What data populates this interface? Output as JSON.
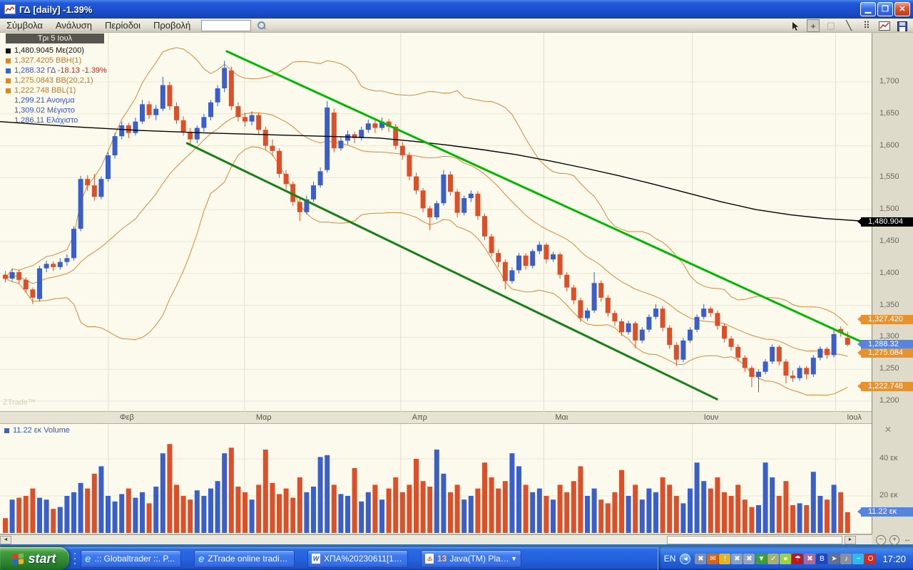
{
  "window": {
    "title": "ΓΔ [daily] -1.39%"
  },
  "menu": {
    "items": [
      "Σύμβολα",
      "Ανάλυση",
      "Περίοδοι",
      "Προβολή"
    ],
    "search_value": ""
  },
  "toolbar": {
    "tools": [
      {
        "name": "pointer-tool",
        "glyph": "svg-pointer",
        "active": false
      },
      {
        "name": "crosshair-tool",
        "glyph": "+",
        "active": true
      },
      {
        "name": "rectangle-tool",
        "glyph": "▢",
        "active": false,
        "disabled": true
      },
      {
        "name": "trendline-tool",
        "glyph": "╲",
        "active": false
      },
      {
        "name": "grid-tool",
        "glyph": "⠿",
        "active": false
      },
      {
        "name": "chart-tool",
        "glyph": "svg-chart",
        "active": false
      },
      {
        "name": "save-tool",
        "glyph": "svg-save",
        "active": false
      }
    ]
  },
  "price_pane": {
    "date_tooltip": "Τρι 5 Ιουλ",
    "watermark": "ZTrade™",
    "legend": [
      {
        "swatch": "#111111",
        "parts": [
          {
            "text": "1,480.9045 Με(200)",
            "color": "#111111"
          }
        ]
      },
      {
        "swatch": "#d9862c",
        "parts": [
          {
            "text": "1,327.4205 BBH(1)",
            "color": "#c8790f"
          }
        ]
      },
      {
        "swatch": "#3b63c4",
        "parts": [
          {
            "text": "1,288.32 ΓΔ ",
            "color": "#3355cc"
          },
          {
            "text": "-18.13 -1.39%",
            "color": "#cc2211"
          }
        ]
      },
      {
        "swatch": "#d9862c",
        "parts": [
          {
            "text": "1,275.0843 BB(20,2,1)",
            "color": "#c8790f"
          }
        ]
      },
      {
        "swatch": "#d9862c",
        "parts": [
          {
            "text": "1,222.748 BBL(1)",
            "color": "#c8790f"
          }
        ]
      },
      {
        "parts": [
          {
            "text": "1,299.21 Ανοιγμα",
            "color": "#3355cc"
          }
        ]
      },
      {
        "parts": [
          {
            "text": "1,309.02 Μέγιστο",
            "color": "#3355cc"
          }
        ]
      },
      {
        "parts": [
          {
            "text": "1,286.11 Ελάχιστο",
            "color": "#3355cc"
          }
        ]
      }
    ]
  },
  "volume_pane": {
    "legend": "11.22 εκ Volume",
    "swatch": "#3b63c4"
  },
  "chart_data": {
    "type": "candlestick+volume",
    "symbol": "ΓΔ",
    "interval": "daily",
    "change_pct": "-1.39%",
    "up_color": "#3a5fc8",
    "down_color": "#dd4f28",
    "band_color": "#d8893a",
    "ma_color": "#000000",
    "price_ticks": [
      {
        "label": "1,700",
        "price": 1700
      },
      {
        "label": "1,650",
        "price": 1650
      },
      {
        "label": "1,600",
        "price": 1600
      },
      {
        "label": "1,550",
        "price": 1550
      },
      {
        "label": "1,500",
        "price": 1500
      },
      {
        "label": "1,450",
        "price": 1450
      },
      {
        "label": "1,400",
        "price": 1400
      },
      {
        "label": "1,350",
        "price": 1350
      },
      {
        "label": "1,300",
        "price": 1300
      },
      {
        "label": "1,250",
        "price": 1250
      },
      {
        "label": "1,200",
        "price": 1200
      }
    ],
    "months": [
      {
        "label": "Φεβ",
        "i": 15.4
      },
      {
        "label": "Μαρ",
        "i": 35.3
      },
      {
        "label": "Απρ",
        "i": 58.1
      },
      {
        "label": "Μαι",
        "i": 79.0
      },
      {
        "label": "Ιουν",
        "i": 100.7
      },
      {
        "label": "Ιουλ",
        "i": 121.6
      }
    ],
    "tags": [
      {
        "name": "ma200-tag",
        "label": "1,480.904",
        "price": 1480.9,
        "bg": "#000000"
      },
      {
        "name": "bbh-tag",
        "label": "1,327.420",
        "price": 1327.42,
        "bg": "#e8922e"
      },
      {
        "name": "last-price-tag",
        "label": "1,288.32",
        "price": 1288.32,
        "bg": "#5585dd"
      },
      {
        "name": "bbmid-tag",
        "label": "1,275.084",
        "price": 1275.08,
        "bg": "#e8922e"
      },
      {
        "name": "bbl-tag",
        "label": "1,222.748",
        "price": 1222.75,
        "bg": "#e8922e"
      }
    ],
    "volume_ticks": [
      {
        "label": "40 εκ",
        "value": 40
      },
      {
        "label": "20 εκ",
        "value": 20
      }
    ],
    "volume_tag": {
      "label": "11.22 εκ",
      "value": 11.22,
      "bg": "#5585dd"
    },
    "last_day": {
      "open": 1299.21,
      "high": 1309.02,
      "low": 1286.11,
      "close": 1288.32,
      "volume_ek": 11.22
    },
    "trendlines": [
      {
        "name": "upper-channel-line",
        "i1": 32.7,
        "p1": 1748,
        "i2": 126.8,
        "p2": 1286,
        "color": "#00b800",
        "width": 3
      },
      {
        "name": "lower-channel-line",
        "i1": 26.9,
        "p1": 1604,
        "i2": 104.3,
        "p2": 1203,
        "color": "#188018",
        "width": 3
      }
    ],
    "ma200_anchors": [
      [
        -0.5,
        1638
      ],
      [
        10,
        1630
      ],
      [
        20,
        1624
      ],
      [
        30,
        1620
      ],
      [
        40,
        1617
      ],
      [
        50,
        1614
      ],
      [
        55,
        1612
      ],
      [
        60,
        1607
      ],
      [
        65,
        1601
      ],
      [
        70,
        1594
      ],
      [
        75,
        1586
      ],
      [
        80,
        1576
      ],
      [
        85,
        1565
      ],
      [
        90,
        1553
      ],
      [
        95,
        1540
      ],
      [
        100,
        1526
      ],
      [
        105,
        1512
      ],
      [
        110,
        1500
      ],
      [
        115,
        1492
      ],
      [
        120,
        1486
      ],
      [
        127,
        1481
      ]
    ],
    "bollinger": {
      "period": 20,
      "mult": 2
    },
    "candles": [
      [
        1398,
        1404,
        1386,
        1392
      ],
      [
        1392,
        1408,
        1388,
        1402
      ],
      [
        1402,
        1406,
        1384,
        1390
      ],
      [
        1390,
        1394,
        1370,
        1375
      ],
      [
        1375,
        1378,
        1352,
        1362
      ],
      [
        1360,
        1412,
        1356,
        1408
      ],
      [
        1408,
        1420,
        1402,
        1415
      ],
      [
        1415,
        1419,
        1404,
        1410
      ],
      [
        1410,
        1424,
        1406,
        1418
      ],
      [
        1418,
        1430,
        1412,
        1424
      ],
      [
        1424,
        1474,
        1420,
        1470
      ],
      [
        1470,
        1553,
        1466,
        1548
      ],
      [
        1548,
        1554,
        1530,
        1538
      ],
      [
        1538,
        1556,
        1514,
        1520
      ],
      [
        1520,
        1552,
        1516,
        1548
      ],
      [
        1548,
        1590,
        1544,
        1585
      ],
      [
        1585,
        1620,
        1580,
        1615
      ],
      [
        1615,
        1638,
        1610,
        1632
      ],
      [
        1632,
        1636,
        1612,
        1620
      ],
      [
        1620,
        1644,
        1616,
        1638
      ],
      [
        1638,
        1672,
        1634,
        1665
      ],
      [
        1665,
        1670,
        1642,
        1648
      ],
      [
        1648,
        1664,
        1640,
        1658
      ],
      [
        1658,
        1708,
        1654,
        1695
      ],
      [
        1695,
        1700,
        1656,
        1662
      ],
      [
        1662,
        1668,
        1634,
        1640
      ],
      [
        1640,
        1646,
        1616,
        1622
      ],
      [
        1622,
        1628,
        1602,
        1610
      ],
      [
        1610,
        1632,
        1604,
        1628
      ],
      [
        1628,
        1650,
        1622,
        1645
      ],
      [
        1645,
        1672,
        1640,
        1668
      ],
      [
        1668,
        1695,
        1662,
        1690
      ],
      [
        1690,
        1733,
        1684,
        1722
      ],
      [
        1718,
        1724,
        1656,
        1662
      ],
      [
        1662,
        1668,
        1638,
        1645
      ],
      [
        1645,
        1652,
        1630,
        1638
      ],
      [
        1638,
        1654,
        1632,
        1648
      ],
      [
        1648,
        1652,
        1618,
        1625
      ],
      [
        1625,
        1630,
        1594,
        1600
      ],
      [
        1600,
        1610,
        1584,
        1592
      ],
      [
        1592,
        1596,
        1550,
        1556
      ],
      [
        1556,
        1562,
        1532,
        1540
      ],
      [
        1540,
        1544,
        1506,
        1512
      ],
      [
        1512,
        1518,
        1482,
        1496
      ],
      [
        1496,
        1522,
        1492,
        1516
      ],
      [
        1516,
        1544,
        1512,
        1538
      ],
      [
        1538,
        1566,
        1534,
        1560
      ],
      [
        1562,
        1670,
        1558,
        1660
      ],
      [
        1652,
        1658,
        1590,
        1596
      ],
      [
        1596,
        1614,
        1592,
        1608
      ],
      [
        1608,
        1624,
        1602,
        1618
      ],
      [
        1618,
        1622,
        1604,
        1612
      ],
      [
        1612,
        1630,
        1608,
        1625
      ],
      [
        1625,
        1641,
        1620,
        1635
      ],
      [
        1635,
        1640,
        1620,
        1628
      ],
      [
        1628,
        1644,
        1624,
        1638
      ],
      [
        1638,
        1642,
        1622,
        1630
      ],
      [
        1630,
        1634,
        1594,
        1600
      ],
      [
        1600,
        1606,
        1578,
        1585
      ],
      [
        1585,
        1590,
        1546,
        1552
      ],
      [
        1552,
        1558,
        1524,
        1530
      ],
      [
        1530,
        1534,
        1496,
        1502
      ],
      [
        1502,
        1506,
        1468,
        1488
      ],
      [
        1488,
        1514,
        1484,
        1510
      ],
      [
        1510,
        1562,
        1506,
        1555
      ],
      [
        1555,
        1560,
        1522,
        1528
      ],
      [
        1528,
        1532,
        1488,
        1495
      ],
      [
        1495,
        1522,
        1491,
        1518
      ],
      [
        1518,
        1530,
        1512,
        1525
      ],
      [
        1525,
        1529,
        1484,
        1490
      ],
      [
        1490,
        1494,
        1452,
        1458
      ],
      [
        1458,
        1462,
        1426,
        1432
      ],
      [
        1432,
        1438,
        1410,
        1418
      ],
      [
        1418,
        1422,
        1375,
        1388
      ],
      [
        1388,
        1410,
        1384,
        1405
      ],
      [
        1405,
        1432,
        1400,
        1428
      ],
      [
        1428,
        1432,
        1406,
        1412
      ],
      [
        1412,
        1438,
        1408,
        1435
      ],
      [
        1435,
        1450,
        1430,
        1445
      ],
      [
        1445,
        1448,
        1416,
        1422
      ],
      [
        1422,
        1434,
        1418,
        1430
      ],
      [
        1430,
        1433,
        1392,
        1398
      ],
      [
        1398,
        1402,
        1372,
        1378
      ],
      [
        1378,
        1382,
        1352,
        1358
      ],
      [
        1358,
        1362,
        1324,
        1330
      ],
      [
        1330,
        1346,
        1326,
        1342
      ],
      [
        1342,
        1402,
        1338,
        1385
      ],
      [
        1385,
        1389,
        1356,
        1362
      ],
      [
        1362,
        1366,
        1332,
        1338
      ],
      [
        1338,
        1342,
        1318,
        1325
      ],
      [
        1325,
        1329,
        1302,
        1308
      ],
      [
        1308,
        1326,
        1304,
        1322
      ],
      [
        1322,
        1325,
        1283,
        1295
      ],
      [
        1295,
        1316,
        1291,
        1312
      ],
      [
        1312,
        1336,
        1308,
        1332
      ],
      [
        1332,
        1352,
        1328,
        1345
      ],
      [
        1345,
        1349,
        1309,
        1315
      ],
      [
        1315,
        1319,
        1282,
        1288
      ],
      [
        1288,
        1292,
        1255,
        1265
      ],
      [
        1265,
        1299,
        1261,
        1295
      ],
      [
        1295,
        1316,
        1291,
        1312
      ],
      [
        1312,
        1336,
        1308,
        1332
      ],
      [
        1332,
        1352,
        1328,
        1345
      ],
      [
        1345,
        1348,
        1332,
        1338
      ],
      [
        1338,
        1342,
        1312,
        1318
      ],
      [
        1318,
        1322,
        1292,
        1298
      ],
      [
        1298,
        1302,
        1279,
        1285
      ],
      [
        1285,
        1289,
        1262,
        1268
      ],
      [
        1268,
        1272,
        1246,
        1252
      ],
      [
        1252,
        1256,
        1222,
        1238
      ],
      [
        1238,
        1250,
        1214,
        1246
      ],
      [
        1246,
        1266,
        1242,
        1262
      ],
      [
        1262,
        1289,
        1258,
        1285
      ],
      [
        1285,
        1288,
        1256,
        1262
      ],
      [
        1262,
        1266,
        1228,
        1240
      ],
      [
        1240,
        1248,
        1230,
        1236
      ],
      [
        1236,
        1256,
        1232,
        1252
      ],
      [
        1252,
        1255,
        1234,
        1242
      ],
      [
        1242,
        1272,
        1238,
        1268
      ],
      [
        1268,
        1286,
        1264,
        1282
      ],
      [
        1282,
        1285,
        1266,
        1272
      ],
      [
        1272,
        1312,
        1268,
        1305
      ],
      [
        1313,
        1317,
        1301,
        1307
      ],
      [
        1299.21,
        1309.02,
        1286.11,
        1288.32
      ]
    ],
    "volumes_ek": [
      8,
      18,
      19,
      20,
      24,
      19,
      18,
      13,
      14,
      20,
      22,
      27,
      24,
      32,
      36,
      20,
      17,
      21,
      24,
      19,
      22,
      16,
      25,
      43,
      48,
      26,
      20,
      18,
      23,
      20,
      24,
      28,
      43,
      46,
      25,
      22,
      18,
      26,
      45,
      27,
      21,
      24,
      19,
      30,
      22,
      25,
      41,
      42,
      26,
      21,
      20,
      35,
      17,
      22,
      26,
      18,
      24,
      30,
      22,
      26,
      40,
      28,
      25,
      45,
      32,
      22,
      26,
      18,
      20,
      24,
      38,
      30,
      24,
      28,
      43,
      36,
      26,
      22,
      24,
      20,
      18,
      26,
      22,
      28,
      36,
      20,
      24,
      18,
      16,
      22,
      34,
      20,
      26,
      18,
      24,
      22,
      30,
      26,
      20,
      16,
      24,
      38,
      28,
      24,
      30,
      22,
      20,
      26,
      18,
      14,
      15,
      38,
      30,
      20,
      28,
      15,
      16,
      15,
      33,
      20,
      18,
      26,
      22,
      11.22
    ]
  },
  "taskbar": {
    "start_label": "start",
    "tasks": [
      {
        "icon": "ie",
        "label": ".:: Globaltrader ::. P..."
      },
      {
        "icon": "ie",
        "label": "ZTrade online trading..."
      },
      {
        "icon": "word",
        "label": "ΧΠΑ%20230611[1] - ..."
      },
      {
        "icon": "java",
        "count": "13",
        "label": "Java(TM) Platfor...",
        "dropdown": true
      }
    ],
    "tray": {
      "language": "EN",
      "clock": "17:20",
      "icons": [
        {
          "name": "network-offline-icon",
          "glyph": "✖",
          "bg": "#7a8fb5"
        },
        {
          "name": "mail-alert-icon",
          "glyph": "✉",
          "bg": "#d8641a"
        },
        {
          "name": "security-center-icon",
          "glyph": "!",
          "bg": "#e8b418"
        },
        {
          "name": "wireless-network-error-icon",
          "glyph": "✖",
          "bg": "#8aa0c0"
        },
        {
          "name": "network-disconnected-icon",
          "glyph": "✖",
          "bg": "#90a4c4"
        },
        {
          "name": "dropbox-icon",
          "glyph": "▼",
          "bg": "#3aa03a"
        },
        {
          "name": "certificate-icon",
          "glyph": "✓",
          "bg": "#a8b070"
        },
        {
          "name": "leaf-icon",
          "glyph": "●",
          "bg": "#9ed23a"
        },
        {
          "name": "avira-umbrella-icon",
          "glyph": "☂",
          "bg": "#c01818"
        },
        {
          "name": "modem-error-icon",
          "glyph": "✖",
          "bg": "#b06a9a"
        },
        {
          "name": "bluetooth-icon",
          "glyph": "B",
          "bg": "#1848c8"
        },
        {
          "name": "launcher-icon",
          "glyph": "➤",
          "bg": "#607090"
        },
        {
          "name": "volume-icon",
          "glyph": "♪",
          "bg": "#8890a0"
        },
        {
          "name": "bird-icon",
          "glyph": "~",
          "bg": "#30b8e8"
        },
        {
          "name": "antivirus-icon",
          "glyph": "O",
          "bg": "#d82818"
        }
      ]
    }
  }
}
